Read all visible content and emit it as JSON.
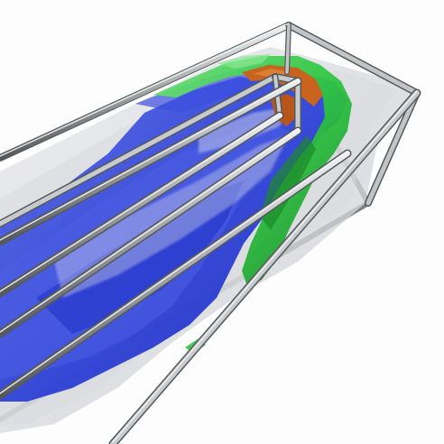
{
  "scene": {
    "kind": "3d-isosurface-render",
    "background": "#fdfdfd",
    "colors": {
      "frame": "#a9acae",
      "frame_shadow": "#55595c",
      "frame_highlight": "#eef0f2",
      "haze": "#d4d6da",
      "blue_shell": "#2a3fd8",
      "blue_deep": "#1424b8",
      "green_shell": "#2ec642",
      "green_dark": "#1c8a2a",
      "orange_core": "#c8641e"
    },
    "layers": [
      "outer-white-haze",
      "blue-isosurface",
      "green-isosurface",
      "orange-core"
    ]
  }
}
